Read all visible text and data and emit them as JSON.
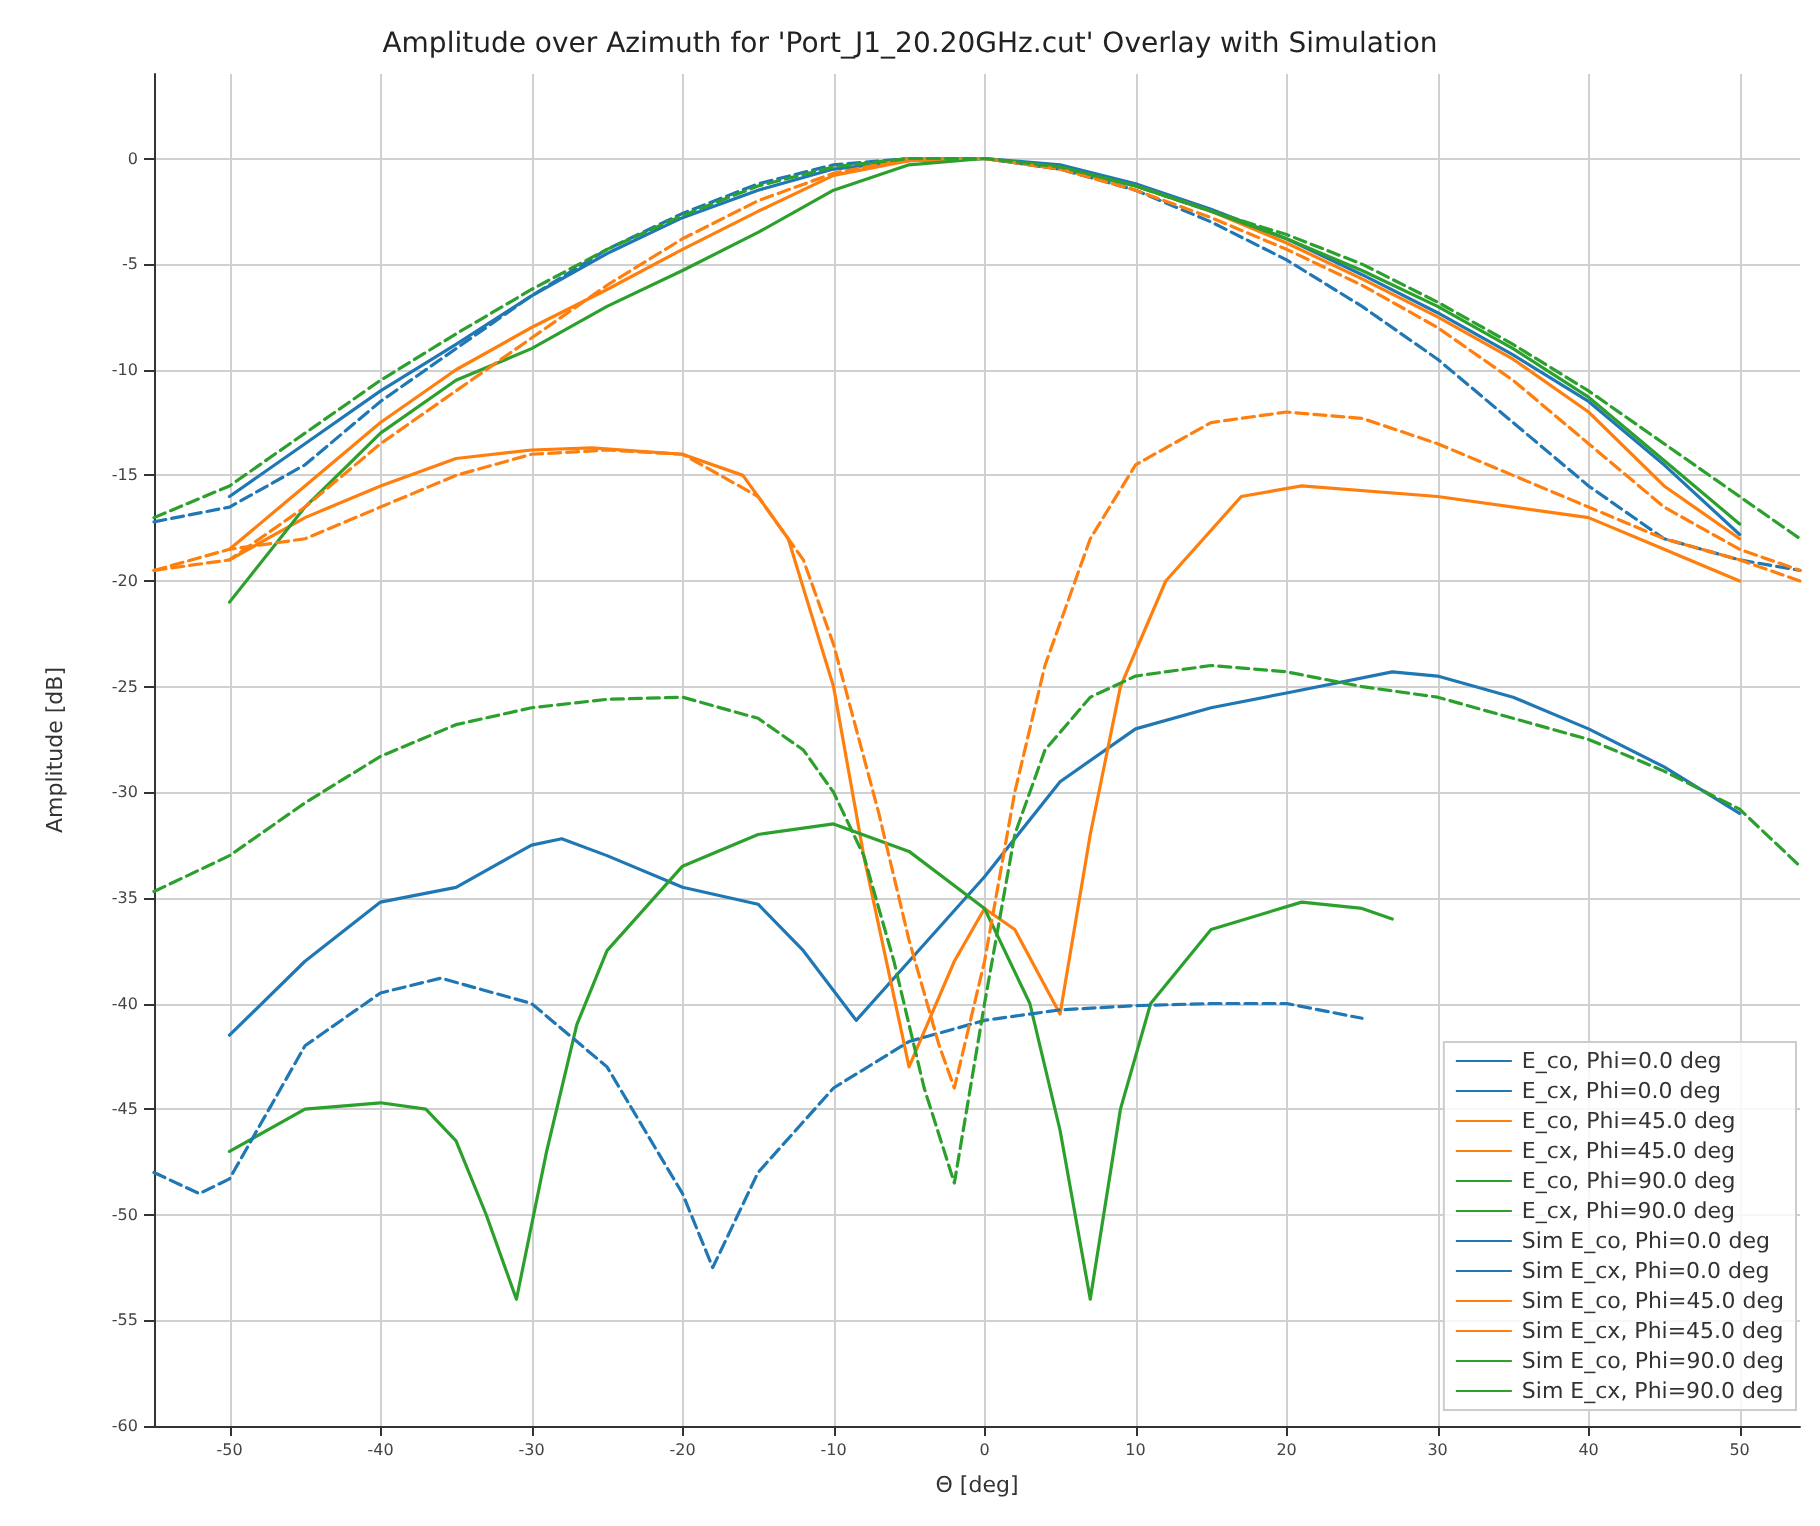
{
  "chart_data": {
    "type": "line",
    "title": "Amplitude over Azimuth for 'Port_J1_20.20GHz.cut' Overlay with Simulation",
    "xlabel": "Θ [deg]",
    "ylabel": "Amplitude [dB]",
    "xlim": [
      -55,
      54
    ],
    "xticks": [
      -50,
      -40,
      -30,
      -20,
      -10,
      0,
      10,
      20,
      30,
      40,
      50
    ],
    "ylim": [
      -60,
      4
    ],
    "yticks": [
      -60,
      -55,
      -50,
      -45,
      -40,
      -35,
      -30,
      -25,
      -20,
      -15,
      -10,
      -5,
      0
    ],
    "grid": true,
    "legend": "bottom right",
    "marker": "none",
    "series": [
      {
        "name": "E_co, Phi=0.0 deg",
        "color": "#1f77b4",
        "line_style": "solid",
        "x": [
          -50,
          -45,
          -40,
          -35,
          -30,
          -25,
          -20,
          -15,
          -10,
          -5,
          0,
          5,
          10,
          15,
          20,
          25,
          30,
          35,
          40,
          45,
          50
        ],
        "values": [
          -16,
          -13.5,
          -11,
          -8.8,
          -6.5,
          -4.5,
          -2.8,
          -1.5,
          -0.5,
          -0.1,
          0,
          -0.3,
          -1.2,
          -2.4,
          -3.8,
          -5.5,
          -7.3,
          -9.3,
          -11.5,
          -14.5,
          -17.8
        ]
      },
      {
        "name": "E_cx, Phi=0.0 deg",
        "color": "#1f77b4",
        "line_style": "solid",
        "x": [
          -50,
          -45,
          -40,
          -35,
          -30,
          -28,
          -25,
          -20,
          -15,
          -12,
          -8.5,
          -5,
          0,
          5,
          10,
          15,
          20,
          27,
          30,
          35,
          40,
          45,
          50
        ],
        "values": [
          -41.5,
          -38,
          -35.2,
          -34.5,
          -32.5,
          -32.2,
          -33,
          -34.5,
          -35.3,
          -37.5,
          -40.8,
          -38,
          -34,
          -29.5,
          -27,
          -26,
          -25.3,
          -24.3,
          -24.5,
          -25.5,
          -27,
          -28.8,
          -31
        ]
      },
      {
        "name": "E_co, Phi=45.0 deg",
        "color": "#ff7f0e",
        "line_style": "solid",
        "x": [
          -50,
          -45,
          -40,
          -35,
          -30,
          -25,
          -20,
          -15,
          -10,
          -5,
          0,
          5,
          10,
          15,
          20,
          25,
          30,
          35,
          40,
          45,
          50
        ],
        "values": [
          -18.5,
          -15.5,
          -12.5,
          -10,
          -8,
          -6.2,
          -4.3,
          -2.5,
          -0.8,
          -0.1,
          0,
          -0.5,
          -1.3,
          -2.5,
          -4,
          -5.7,
          -7.5,
          -9.5,
          -12,
          -15.5,
          -18
        ]
      },
      {
        "name": "E_cx, Phi=45.0 deg",
        "color": "#ff7f0e",
        "line_style": "solid",
        "x": [
          -50,
          -45,
          -40,
          -35,
          -30,
          -26,
          -20,
          -16,
          -13,
          -10,
          -8,
          -5,
          -2,
          0,
          2,
          5,
          7,
          9,
          12,
          17,
          21,
          30,
          40,
          45,
          50
        ],
        "values": [
          -19,
          -17,
          -15.5,
          -14.2,
          -13.8,
          -13.7,
          -14,
          -15,
          -18,
          -25,
          -33,
          -43,
          -38,
          -35.5,
          -36.5,
          -40.5,
          -32,
          -25,
          -20,
          -16,
          -15.5,
          -16,
          -17,
          -18.5,
          -20
        ]
      },
      {
        "name": "E_co, Phi=90.0 deg",
        "color": "#2ca02c",
        "line_style": "solid",
        "x": [
          -50,
          -45,
          -40,
          -35,
          -30,
          -25,
          -20,
          -15,
          -10,
          -5,
          0,
          5,
          10,
          15,
          20,
          25,
          30,
          35,
          40,
          45,
          50
        ],
        "values": [
          -21,
          -16.5,
          -13,
          -10.5,
          -9,
          -7,
          -5.3,
          -3.5,
          -1.5,
          -0.3,
          0,
          -0.4,
          -1.3,
          -2.5,
          -3.8,
          -5.3,
          -7,
          -9,
          -11.3,
          -14.3,
          -17.3
        ]
      },
      {
        "name": "E_cx, Phi=90.0 deg",
        "color": "#2ca02c",
        "line_style": "solid",
        "x": [
          -50,
          -45,
          -40,
          -37,
          -35,
          -33,
          -31,
          -29,
          -27,
          -25,
          -20,
          -15,
          -10,
          -5,
          0,
          3,
          5,
          7,
          9,
          11,
          15,
          21,
          25,
          27
        ],
        "values": [
          -47,
          -45,
          -44.7,
          -45,
          -46.5,
          -50,
          -54,
          -47,
          -41,
          -37.5,
          -33.5,
          -32,
          -31.5,
          -32.8,
          -35.5,
          -40,
          -46,
          -54,
          -45,
          -40,
          -36.5,
          -35.2,
          -35.5,
          -36
        ]
      },
      {
        "name": "Sim E_co, Phi=0.0 deg",
        "color": "#1f77b4",
        "line_style": "dashed",
        "x": [
          -55,
          -50,
          -45,
          -40,
          -35,
          -30,
          -25,
          -20,
          -15,
          -10,
          -5,
          0,
          5,
          10,
          15,
          20,
          25,
          30,
          35,
          40,
          45,
          50,
          54
        ],
        "values": [
          -17.2,
          -16.5,
          -14.5,
          -11.5,
          -9,
          -6.5,
          -4.3,
          -2.6,
          -1.2,
          -0.3,
          0,
          0,
          -0.5,
          -1.5,
          -3,
          -4.8,
          -7,
          -9.5,
          -12.5,
          -15.5,
          -18,
          -19,
          -19.5
        ]
      },
      {
        "name": "Sim E_cx, Phi=0.0 deg",
        "color": "#1f77b4",
        "line_style": "dashed",
        "x": [
          -55,
          -52,
          -50,
          -45,
          -40,
          -36,
          -30,
          -25,
          -20,
          -18,
          -15,
          -10,
          -5,
          0,
          5,
          10,
          15,
          20,
          25
        ],
        "values": [
          -48,
          -49,
          -48.3,
          -42,
          -39.5,
          -38.8,
          -40,
          -43,
          -49,
          -52.5,
          -48,
          -44,
          -41.8,
          -40.8,
          -40.3,
          -40.1,
          -40,
          -40,
          -40.7
        ]
      },
      {
        "name": "Sim E_co, Phi=45.0 deg",
        "color": "#ff7f0e",
        "line_style": "dashed",
        "x": [
          -55,
          -50,
          -45,
          -40,
          -35,
          -30,
          -25,
          -20,
          -15,
          -10,
          -5,
          0,
          5,
          10,
          15,
          20,
          25,
          30,
          35,
          40,
          45,
          50,
          54
        ],
        "values": [
          -19.5,
          -19,
          -16.5,
          -13.5,
          -11,
          -8.5,
          -6,
          -3.8,
          -2,
          -0.7,
          0,
          0,
          -0.5,
          -1.5,
          -2.8,
          -4.3,
          -6,
          -8,
          -10.5,
          -13.5,
          -16.5,
          -18.5,
          -19.5
        ]
      },
      {
        "name": "Sim E_cx, Phi=45.0 deg",
        "color": "#ff7f0e",
        "line_style": "dashed",
        "x": [
          -55,
          -50,
          -45,
          -40,
          -35,
          -30,
          -25,
          -20,
          -15,
          -12,
          -10,
          -7,
          -5,
          -3,
          -2,
          0,
          2,
          4,
          7,
          10,
          15,
          20,
          25,
          30,
          35,
          40,
          45,
          50,
          54
        ],
        "values": [
          -19.5,
          -18.5,
          -18,
          -16.5,
          -15,
          -14,
          -13.8,
          -14,
          -16,
          -19,
          -23,
          -31,
          -37,
          -42,
          -44,
          -38,
          -30,
          -24,
          -18,
          -14.5,
          -12.5,
          -12,
          -12.3,
          -13.5,
          -15,
          -16.5,
          -18,
          -19,
          -20
        ]
      },
      {
        "name": "Sim E_co, Phi=90.0 deg",
        "color": "#2ca02c",
        "line_style": "dashed",
        "x": [
          -55,
          -50,
          -45,
          -40,
          -35,
          -30,
          -25,
          -20,
          -15,
          -10,
          -5,
          0,
          5,
          10,
          15,
          20,
          25,
          30,
          35,
          40,
          45,
          50,
          54
        ],
        "values": [
          -17,
          -15.5,
          -13,
          -10.5,
          -8.3,
          -6.2,
          -4.3,
          -2.7,
          -1.3,
          -0.4,
          0,
          0,
          -0.4,
          -1.3,
          -2.5,
          -3.6,
          -5,
          -6.8,
          -8.8,
          -11,
          -13.5,
          -16,
          -18
        ]
      },
      {
        "name": "Sim E_cx, Phi=90.0 deg",
        "color": "#2ca02c",
        "line_style": "dashed",
        "x": [
          -55,
          -50,
          -45,
          -40,
          -35,
          -30,
          -25,
          -20,
          -15,
          -12,
          -10,
          -8,
          -6,
          -4,
          -2,
          0,
          2,
          4,
          7,
          10,
          15,
          20,
          25,
          30,
          35,
          40,
          45,
          50,
          54
        ],
        "values": [
          -34.7,
          -33,
          -30.5,
          -28.3,
          -26.8,
          -26,
          -25.6,
          -25.5,
          -26.5,
          -28,
          -30,
          -33,
          -38,
          -44,
          -48.5,
          -40,
          -32,
          -28,
          -25.5,
          -24.5,
          -24,
          -24.3,
          -25,
          -25.5,
          -26.5,
          -27.5,
          -29,
          -30.8,
          -33.5
        ]
      }
    ]
  }
}
